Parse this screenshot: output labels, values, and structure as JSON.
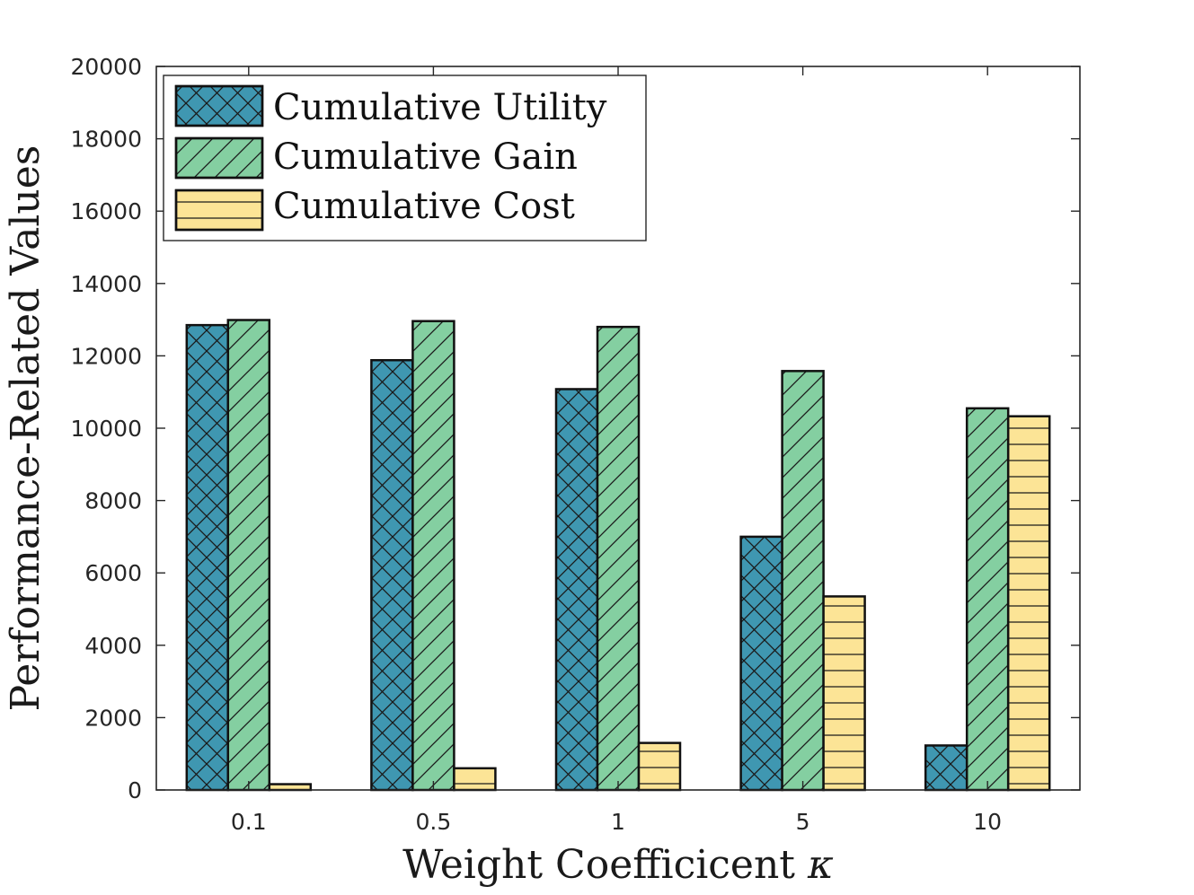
{
  "chart_data": {
    "type": "bar",
    "title": "",
    "xlabel": "Weight Coefficicent",
    "xlabel_symbol": "κ",
    "ylabel": "Performance-Related Values",
    "categories": [
      "0.1",
      "0.5",
      "1",
      "5",
      "10"
    ],
    "ylim": [
      0,
      20000
    ],
    "yticks": [
      "0",
      "2000",
      "4000",
      "6000",
      "8000",
      "10000",
      "12000",
      "14000",
      "16000",
      "18000",
      "20000"
    ],
    "legend_position": "top-left",
    "series": [
      {
        "name": "Cumulative Utility",
        "color": "#3f97b1",
        "hatch": "crosshatch",
        "values": [
          12850,
          11880,
          11080,
          7000,
          1230
        ]
      },
      {
        "name": "Cumulative Gain",
        "color": "#84cfa1",
        "hatch": "diagonal",
        "values": [
          12990,
          12960,
          12800,
          11580,
          10550
        ]
      },
      {
        "name": "Cumulative Cost",
        "color": "#fce496",
        "hatch": "horizontal",
        "values": [
          160,
          600,
          1300,
          5350,
          10330
        ]
      }
    ]
  }
}
